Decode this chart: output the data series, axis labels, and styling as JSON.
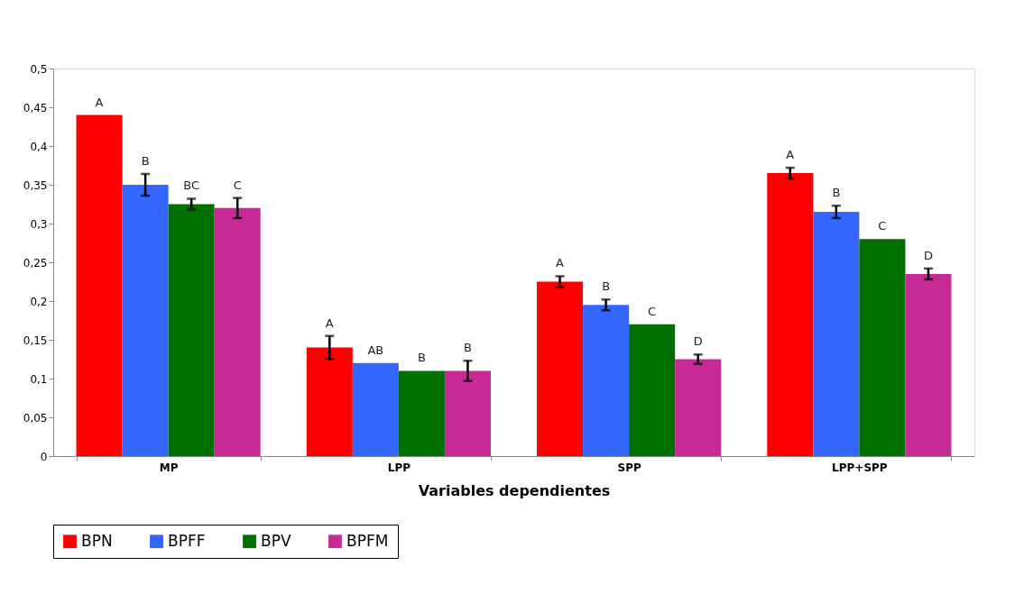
{
  "chart_data": {
    "type": "bar",
    "xlabel": "Variables dependientes",
    "categories": [
      "MP",
      "LPP",
      "SPP",
      "LPP+SPP"
    ],
    "series": [
      {
        "name": "BPN",
        "color": "#ff0000",
        "values": [
          0.44,
          0.14,
          0.225,
          0.365
        ],
        "errors": [
          null,
          0.015,
          0.007,
          0.007
        ],
        "value_labels": [
          "A",
          "A",
          "A",
          "A"
        ]
      },
      {
        "name": "BPFF",
        "color": "#3366ff",
        "values": [
          0.35,
          0.12,
          0.195,
          0.315
        ],
        "errors": [
          0.014,
          null,
          0.007,
          0.008
        ],
        "value_labels": [
          "B",
          "AB",
          "B",
          "B"
        ]
      },
      {
        "name": "BPV",
        "color": "#007000",
        "values": [
          0.325,
          0.11,
          0.17,
          0.28
        ],
        "errors": [
          0.007,
          null,
          null,
          null
        ],
        "value_labels": [
          "BC",
          "B",
          "C",
          "C"
        ]
      },
      {
        "name": "BPFM",
        "color": "#c72a94",
        "values": [
          0.32,
          0.11,
          0.125,
          0.235
        ],
        "errors": [
          0.013,
          0.013,
          0.006,
          0.007
        ],
        "value_labels": [
          "C",
          "B",
          "D",
          "D"
        ]
      }
    ],
    "ylim": [
      0,
      0.5
    ],
    "yticks": [
      0,
      {
        "value": 0.05,
        "label": "0,05"
      },
      {
        "value": 0.1,
        "label": "0,1"
      },
      {
        "value": 0.15,
        "label": "0,15"
      },
      {
        "value": 0.2,
        "label": "0,2"
      },
      {
        "value": 0.25,
        "label": "0,25"
      },
      {
        "value": 0.3,
        "label": "0,3"
      },
      {
        "value": 0.35,
        "label": "0,35"
      },
      {
        "value": 0.4,
        "label": "0,4"
      },
      {
        "value": 0.45,
        "label": "0,45"
      },
      {
        "value": 0.5,
        "label": "0,5"
      }
    ],
    "grid": false,
    "legend": "bottom"
  }
}
